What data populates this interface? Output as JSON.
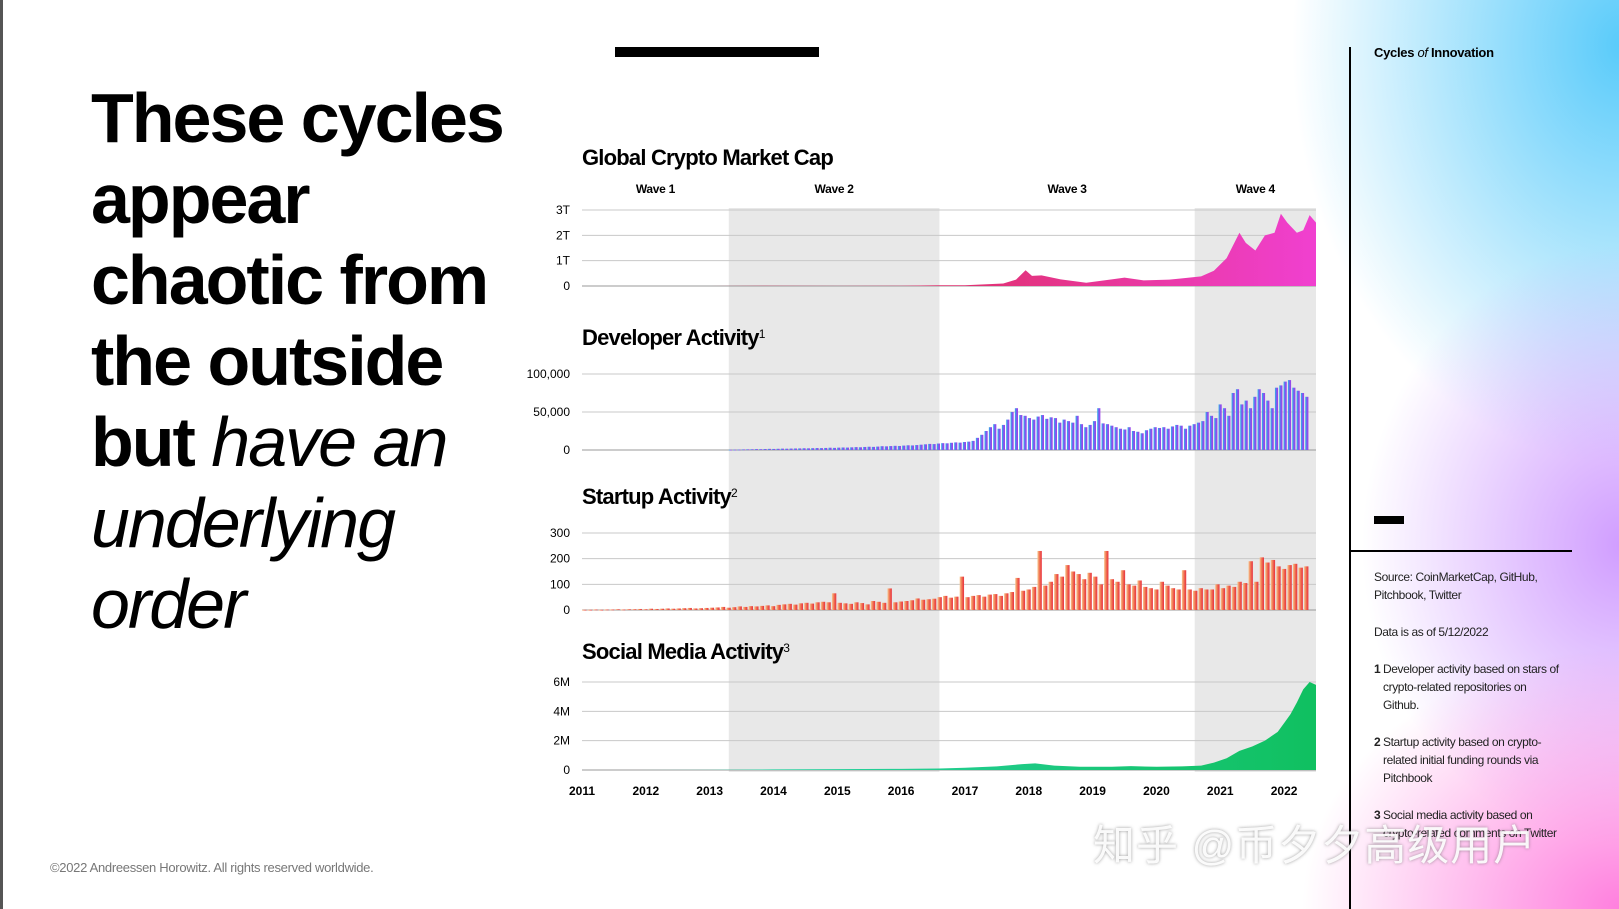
{
  "headline": {
    "bold": "These cycles appear chaotic from the outside but",
    "italic": "have an underlying order"
  },
  "copyright": "©2022 Andreessen Horowitz. All rights reserved worldwide.",
  "brand": {
    "cycles": "Cycles",
    "of": "of",
    "innovation": "Innovation"
  },
  "sidenotes": {
    "source": "Source: CoinMarketCap, GitHub, Pitchbook, Twitter",
    "date": "Data is as of 5/12/2022",
    "footnotes": [
      {
        "num": "1",
        "text": "Developer activity based on stars of crypto-related repositories on Github."
      },
      {
        "num": "2",
        "text": "Startup activity based on crypto-related initial funding rounds via Pitchbook"
      },
      {
        "num": "3",
        "text": "Social media activity based on crypto-related comments on Twitter"
      }
    ]
  },
  "watermark": "知乎 @币夕夕高级用户",
  "colors": {
    "wave_shade": "#e8e8e8",
    "market": [
      "#b5344a",
      "#e0306e",
      "#f040d0"
    ],
    "developer": [
      "#28b8e8",
      "#7a5cf0",
      "#a040e8"
    ],
    "startup": [
      "#f8c890",
      "#f07050",
      "#e83040"
    ],
    "social": [
      "#30d8b8",
      "#10c060"
    ]
  },
  "chart_data": {
    "type": "area",
    "x_range": [
      2011,
      2022.5
    ],
    "x_ticks": [
      "2011",
      "2012",
      "2013",
      "2014",
      "2015",
      "2016",
      "2017",
      "2018",
      "2019",
      "2020",
      "2021",
      "2022"
    ],
    "waves": [
      {
        "name": "Wave 1",
        "start": 2011,
        "end": 2013.3,
        "shaded": false
      },
      {
        "name": "Wave 2",
        "start": 2013.3,
        "end": 2016.6,
        "shaded": true
      },
      {
        "name": "Wave 3",
        "start": 2016.6,
        "end": 2020.6,
        "shaded": false
      },
      {
        "name": "Wave 4",
        "start": 2020.6,
        "end": 2022.5,
        "shaded": true
      }
    ],
    "panels": [
      {
        "id": "market",
        "type": "area",
        "title": "Global Crypto Market Cap",
        "footnote": "",
        "y_ticks": [
          {
            "v": 0,
            "label": "0"
          },
          {
            "v": 1,
            "label": "1T"
          },
          {
            "v": 2,
            "label": "2T"
          },
          {
            "v": 3,
            "label": "3T"
          }
        ],
        "ylim": [
          0,
          3
        ],
        "x": [
          2011,
          2013,
          2013.9,
          2015,
          2016,
          2016.6,
          2017,
          2017.6,
          2017.8,
          2017.95,
          2018.05,
          2018.2,
          2018.5,
          2018.9,
          2019.3,
          2019.5,
          2019.8,
          2020.2,
          2020.4,
          2020.7,
          2020.9,
          2021.1,
          2021.3,
          2021.4,
          2021.55,
          2021.7,
          2021.85,
          2021.95,
          2022.05,
          2022.2,
          2022.3,
          2022.4,
          2022.5
        ],
        "values": [
          0,
          0.002,
          0.012,
          0.006,
          0.009,
          0.03,
          0.03,
          0.1,
          0.25,
          0.62,
          0.4,
          0.42,
          0.26,
          0.13,
          0.26,
          0.33,
          0.22,
          0.25,
          0.3,
          0.38,
          0.6,
          1.1,
          2.1,
          1.7,
          1.4,
          2.0,
          2.1,
          2.85,
          2.5,
          2.1,
          2.2,
          2.8,
          2.5
        ]
      },
      {
        "id": "developer",
        "type": "bar",
        "title": "Developer Activity",
        "footnote": "1",
        "y_ticks": [
          {
            "v": 0,
            "label": "0"
          },
          {
            "v": 50000,
            "label": "50,000"
          },
          {
            "v": 100000,
            "label": "100,000"
          }
        ],
        "ylim": [
          0,
          100000
        ],
        "x_start": 2013.3,
        "x_end": 2022.4,
        "values": [
          400,
          500,
          600,
          800,
          900,
          1000,
          1200,
          1100,
          1300,
          1500,
          1400,
          1600,
          1800,
          1700,
          1900,
          2000,
          2100,
          2300,
          2200,
          2400,
          2600,
          2500,
          2700,
          3000,
          2800,
          3100,
          3300,
          3200,
          3500,
          3800,
          3600,
          4000,
          4300,
          4100,
          4500,
          5000,
          4800,
          5200,
          5500,
          5300,
          5800,
          6200,
          6000,
          6500,
          7000,
          7500,
          8000,
          7800,
          8500,
          9000,
          8800,
          9500,
          10000,
          9700,
          10500,
          11000,
          12000,
          16000,
          20000,
          25000,
          30000,
          34000,
          28000,
          33000,
          40000,
          50000,
          55000,
          46000,
          45000,
          42000,
          40000,
          44000,
          46000,
          41000,
          43000,
          42000,
          36000,
          40000,
          38000,
          36000,
          45000,
          34000,
          30000,
          33000,
          38000,
          55000,
          35000,
          34000,
          32000,
          30000,
          28000,
          27000,
          30000,
          25000,
          24000,
          22000,
          26000,
          28000,
          30000,
          29000,
          30000,
          28000,
          31000,
          33000,
          32000,
          28000,
          32000,
          34000,
          36000,
          38000,
          50000,
          45000,
          42000,
          60000,
          55000,
          45000,
          75000,
          80000,
          60000,
          65000,
          55000,
          70000,
          80000,
          75000,
          65000,
          55000,
          82000,
          85000,
          90000,
          92000,
          82000,
          78000,
          75000,
          70000
        ]
      },
      {
        "id": "startup",
        "type": "bar",
        "title": "Startup Activity",
        "footnote": "2",
        "y_ticks": [
          {
            "v": 0,
            "label": "0"
          },
          {
            "v": 100,
            "label": "100"
          },
          {
            "v": 200,
            "label": "200"
          },
          {
            "v": 300,
            "label": "300"
          }
        ],
        "ylim": [
          0,
          300
        ],
        "x_start": 2011,
        "x_end": 2022.4,
        "values": [
          1,
          1,
          2,
          1,
          2,
          2,
          3,
          2,
          3,
          3,
          4,
          3,
          5,
          4,
          5,
          6,
          5,
          6,
          7,
          8,
          6,
          7,
          8,
          9,
          10,
          12,
          9,
          11,
          14,
          12,
          15,
          14,
          16,
          18,
          15,
          20,
          22,
          24,
          21,
          26,
          28,
          25,
          30,
          32,
          30,
          65,
          28,
          26,
          24,
          30,
          27,
          22,
          35,
          32,
          28,
          84,
          30,
          33,
          35,
          38,
          45,
          40,
          42,
          44,
          50,
          55,
          48,
          52,
          130,
          50,
          55,
          58,
          52,
          60,
          62,
          55,
          65,
          70,
          125,
          75,
          80,
          90,
          230,
          95,
          110,
          140,
          130,
          175,
          150,
          140,
          120,
          145,
          130,
          100,
          230,
          120,
          110,
          155,
          100,
          95,
          115,
          90,
          85,
          80,
          110,
          95,
          85,
          80,
          155,
          80,
          75,
          85,
          80,
          80,
          100,
          85,
          95,
          90,
          110,
          105,
          190,
          110,
          205,
          185,
          195,
          170,
          160,
          175,
          180,
          165,
          170
        ]
      },
      {
        "id": "social",
        "type": "area",
        "title": "Social Media Activity",
        "footnote": "3",
        "y_ticks": [
          {
            "v": 0,
            "label": "0"
          },
          {
            "v": 2,
            "label": "2M"
          },
          {
            "v": 4,
            "label": "4M"
          },
          {
            "v": 6,
            "label": "6M"
          }
        ],
        "ylim": [
          0,
          6
        ],
        "x": [
          2011,
          2013,
          2014,
          2015,
          2016,
          2016.6,
          2017,
          2017.5,
          2017.9,
          2018.1,
          2018.4,
          2018.8,
          2019.3,
          2019.6,
          2020.0,
          2020.4,
          2020.7,
          2020.9,
          2021.1,
          2021.3,
          2021.5,
          2021.7,
          2021.9,
          2022.0,
          2022.1,
          2022.2,
          2022.3,
          2022.4,
          2022.5
        ],
        "values": [
          0,
          0.01,
          0.04,
          0.06,
          0.08,
          0.1,
          0.15,
          0.25,
          0.4,
          0.45,
          0.3,
          0.22,
          0.22,
          0.26,
          0.22,
          0.25,
          0.3,
          0.5,
          0.8,
          1.3,
          1.6,
          2.0,
          2.6,
          3.2,
          3.8,
          4.6,
          5.5,
          6.0,
          5.8
        ]
      }
    ]
  }
}
